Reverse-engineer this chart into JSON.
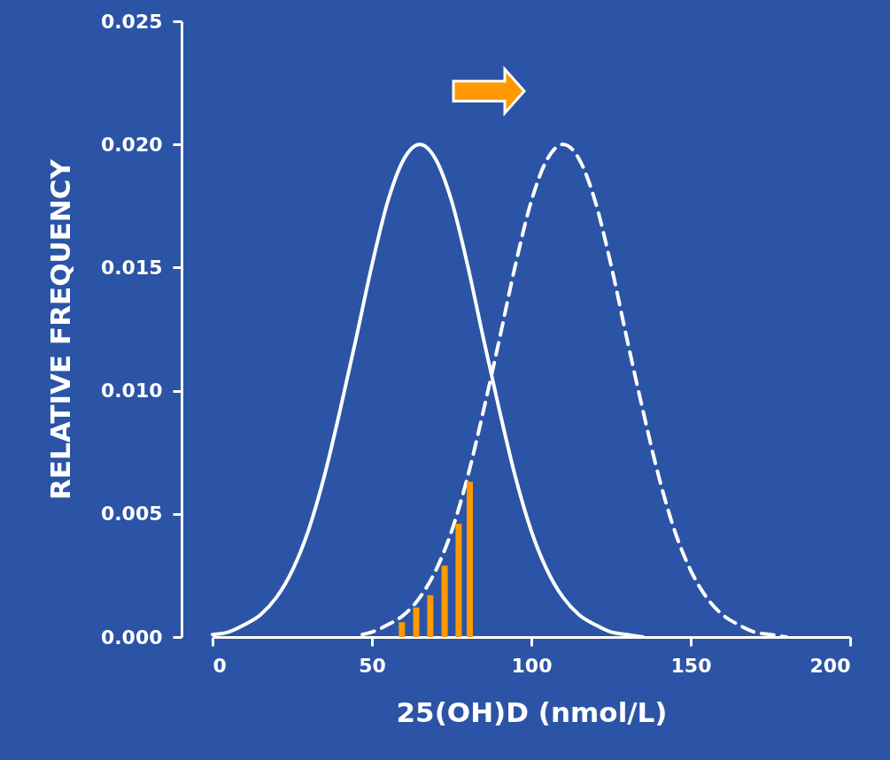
{
  "chart_data": {
    "type": "line",
    "xlabel": "25(OH)D (nmol/L)",
    "ylabel": "RELATIVE FREQUENCY",
    "xlim": [
      0,
      200
    ],
    "xticks": [
      0,
      50,
      100,
      150,
      200
    ],
    "ylim": [
      0,
      0.025
    ],
    "yticks": [
      {
        "value": 0,
        "label": "0.000"
      },
      {
        "value": 0.005,
        "label": "0.005"
      },
      {
        "value": 0.01,
        "label": "0.010"
      },
      {
        "value": 0.015,
        "label": "0.015"
      },
      {
        "value": 0.02,
        "label": "0.020"
      },
      {
        "value": 0.025,
        "label": "0.025"
      }
    ],
    "marker": "none",
    "series": [
      {
        "line_style": "solid",
        "color": "#ffffff",
        "x": [
          0,
          5,
          10,
          15,
          20,
          25,
          30,
          35,
          40,
          45,
          50,
          55,
          60,
          65,
          70,
          75,
          80,
          85,
          90,
          95,
          100,
          105,
          110,
          115,
          120,
          125,
          130,
          135
        ],
        "values": [
          0.0001,
          0.0002,
          0.0005,
          0.0009,
          0.0016,
          0.0027,
          0.0043,
          0.0065,
          0.0092,
          0.0121,
          0.0151,
          0.0177,
          0.0194,
          0.02,
          0.0194,
          0.0177,
          0.0151,
          0.0121,
          0.0092,
          0.0065,
          0.0043,
          0.0027,
          0.0016,
          0.0009,
          0.0005,
          0.0002,
          0.0001,
          0.0
        ]
      },
      {
        "line_style": "dashed",
        "color": "#ffffff",
        "x": [
          47,
          50,
          55,
          60,
          65,
          70,
          75,
          80,
          85,
          90,
          95,
          100,
          105,
          110,
          115,
          120,
          125,
          130,
          135,
          140,
          145,
          150,
          155,
          160,
          165,
          170,
          175,
          180
        ],
        "values": [
          0.0001,
          0.0002,
          0.0005,
          0.0009,
          0.0016,
          0.0027,
          0.0043,
          0.0065,
          0.0092,
          0.0121,
          0.0151,
          0.0177,
          0.0194,
          0.02,
          0.0194,
          0.0177,
          0.0151,
          0.0121,
          0.0092,
          0.0065,
          0.0043,
          0.0027,
          0.0016,
          0.0009,
          0.0005,
          0.0002,
          0.0001,
          0.0
        ]
      },
      {
        "type": "bar",
        "color": "#ff9900",
        "x": [
          59.4,
          63.9,
          68.3,
          72.8,
          77.2,
          80.7
        ],
        "values": [
          0.0006,
          0.0012,
          0.0017,
          0.0029,
          0.0046,
          0.0063
        ]
      }
    ]
  }
}
